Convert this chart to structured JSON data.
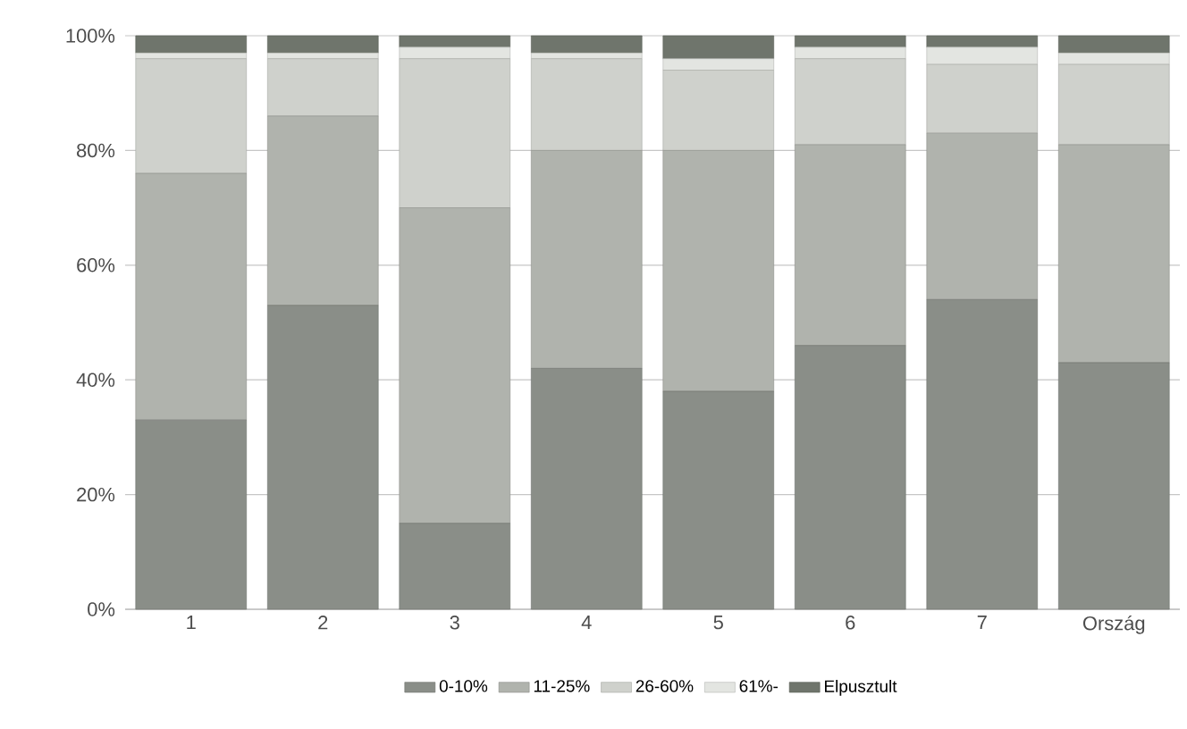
{
  "chart_data": {
    "type": "bar",
    "stacked": true,
    "categories": [
      "1",
      "2",
      "3",
      "4",
      "5",
      "6",
      "7",
      "Ország"
    ],
    "series": [
      {
        "name": "0-10%",
        "color": "#8a8e88",
        "values": [
          33,
          53,
          15,
          42,
          38,
          46,
          54,
          43
        ]
      },
      {
        "name": "11-25%",
        "color": "#b0b3ad",
        "values": [
          43,
          33,
          55,
          38,
          42,
          35,
          29,
          38
        ]
      },
      {
        "name": "26-60%",
        "color": "#cfd1cc",
        "values": [
          20,
          10,
          26,
          16,
          14,
          15,
          12,
          14
        ]
      },
      {
        "name": "61%-",
        "color": "#e3e5e1",
        "values": [
          1,
          1,
          2,
          1,
          2,
          2,
          3,
          2
        ]
      },
      {
        "name": "Elpusztult",
        "color": "#6f756c",
        "values": [
          3,
          3,
          2,
          3,
          4,
          2,
          2,
          3
        ]
      }
    ],
    "ylim": [
      0,
      100
    ],
    "yticks": [
      {
        "value": 0,
        "label": "0%"
      },
      {
        "value": 20,
        "label": "20%"
      },
      {
        "value": 40,
        "label": "40%"
      },
      {
        "value": 60,
        "label": "60%"
      },
      {
        "value": 80,
        "label": "80%"
      },
      {
        "value": 100,
        "label": "100%"
      }
    ],
    "grid": "y",
    "legend": "bottom"
  }
}
